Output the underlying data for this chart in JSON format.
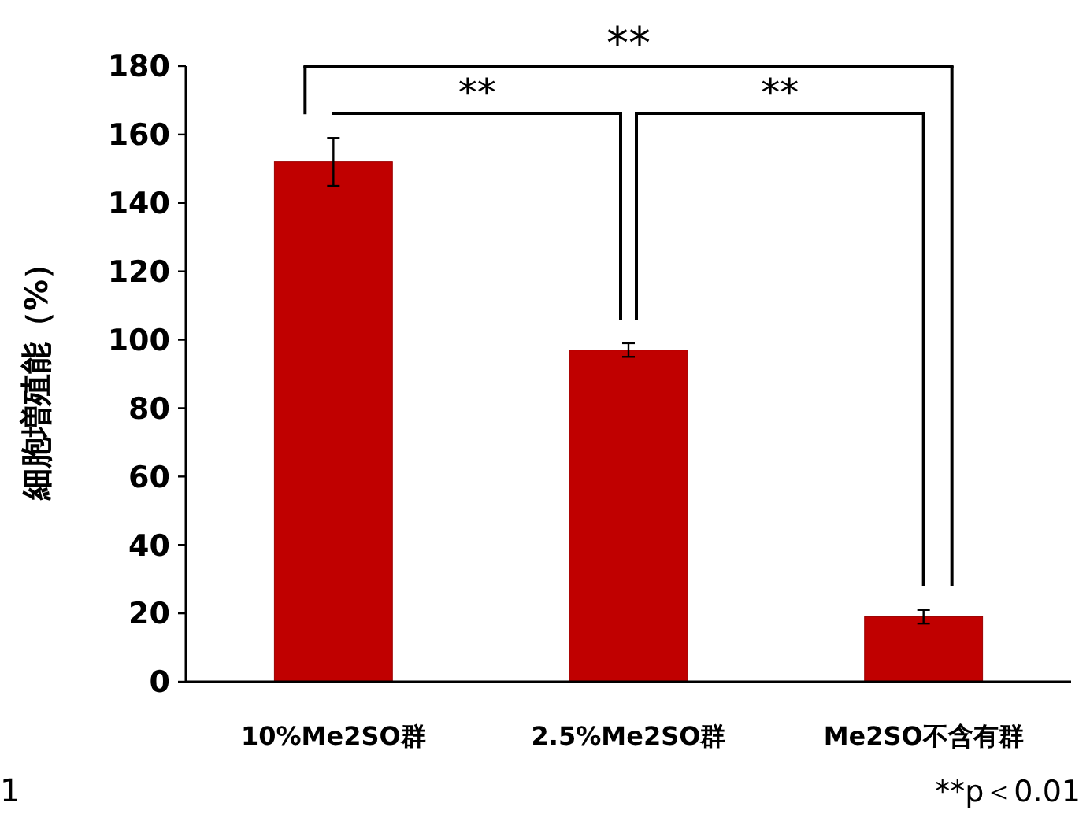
{
  "chart_data": {
    "type": "bar",
    "ylabel": "細胞増殖能（%）",
    "categories": [
      "10%Me2SO群",
      "2.5%Me2SO群",
      "Me2SO不含有群"
    ],
    "values": [
      152,
      97,
      19
    ],
    "errors": [
      7,
      2,
      2
    ],
    "color": "#c00000",
    "ylim": [
      0,
      180
    ],
    "yticks": [
      0,
      20,
      40,
      60,
      80,
      100,
      120,
      140,
      160,
      180
    ],
    "annotations": [
      "**",
      "**",
      "**",
      "1",
      "**p＜0.01"
    ]
  }
}
